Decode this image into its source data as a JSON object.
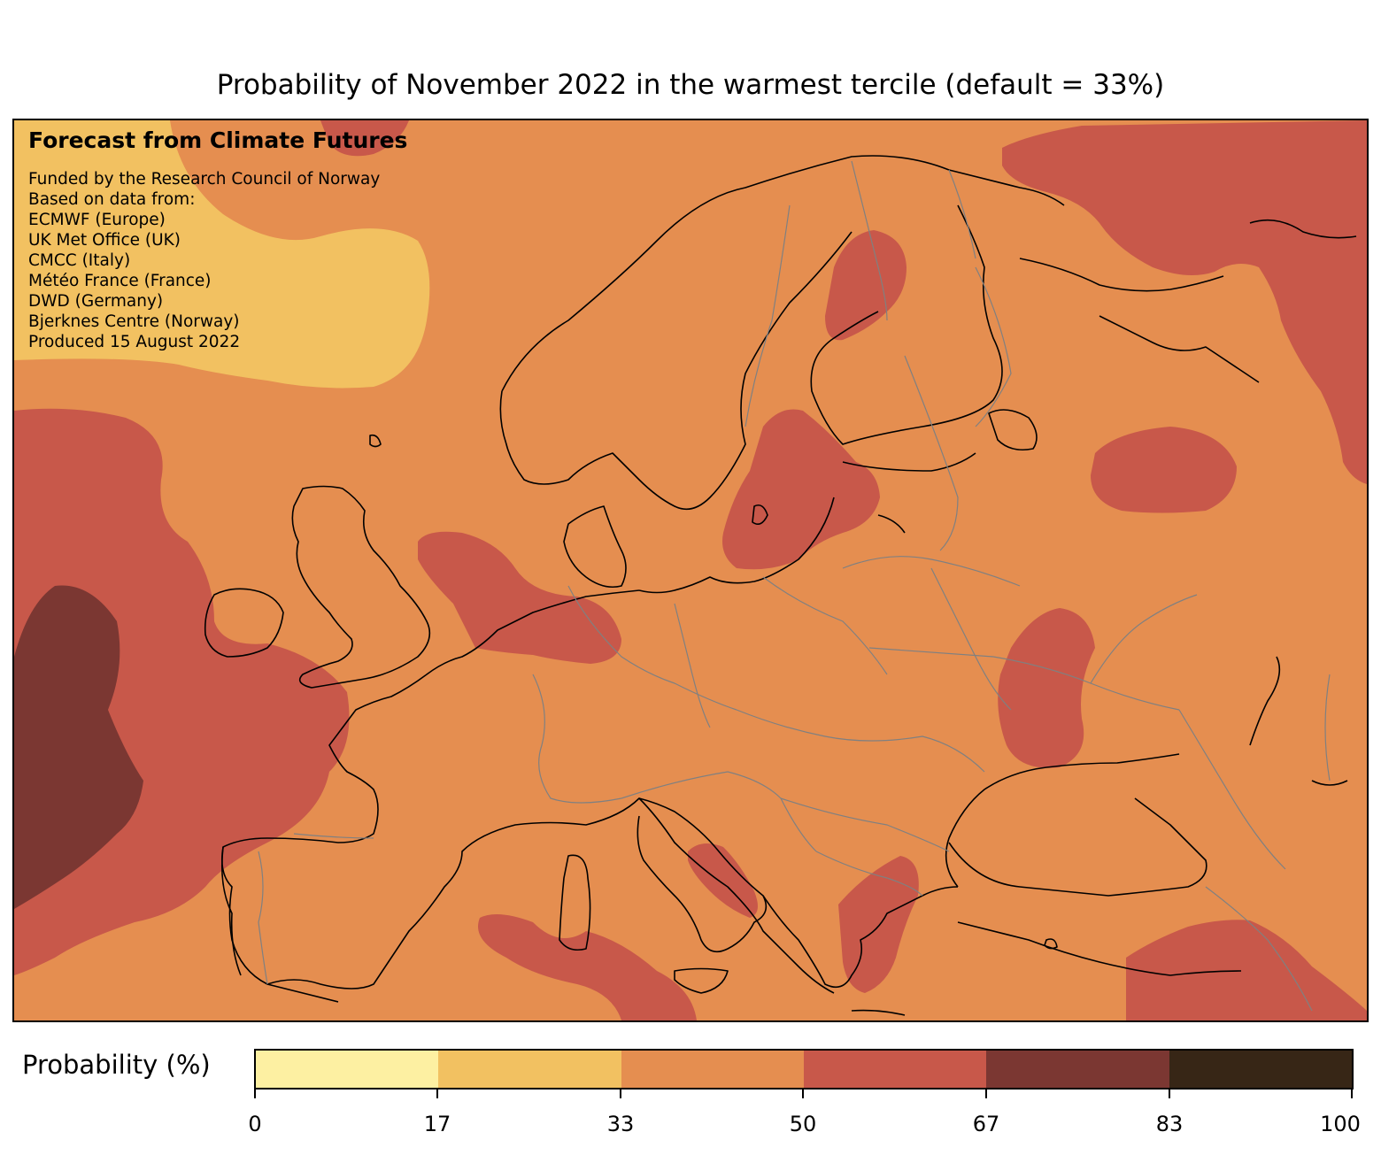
{
  "title": "Probability of November 2022 in the warmest tercile (default = 33%)",
  "credits": {
    "heading": "Forecast from Climate Futures",
    "lines": [
      "Funded by the Research Council of Norway",
      "Based on data from:",
      "ECMWF (Europe)",
      "UK Met Office (UK)",
      "CMCC (Italy)",
      "Météo France (France)",
      "DWD (Germany)",
      "Bjerknes Centre (Norway)",
      "Produced 15 August 2022"
    ]
  },
  "legend": {
    "label": "Probability (%)",
    "bins": [
      {
        "from": 0,
        "to": 17,
        "color": "#fdf0a2"
      },
      {
        "from": 17,
        "to": 33,
        "color": "#f2c161"
      },
      {
        "from": 33,
        "to": 50,
        "color": "#e58e50"
      },
      {
        "from": 50,
        "to": 67,
        "color": "#c8584a"
      },
      {
        "from": 67,
        "to": 83,
        "color": "#7b3732"
      },
      {
        "from": 83,
        "to": 100,
        "color": "#372616"
      }
    ],
    "ticks": [
      "0",
      "17",
      "33",
      "50",
      "67",
      "83",
      "100"
    ]
  },
  "map": {
    "background_color": "#e58e50",
    "coastline_color": "#000000",
    "border_color": "#808080"
  }
}
